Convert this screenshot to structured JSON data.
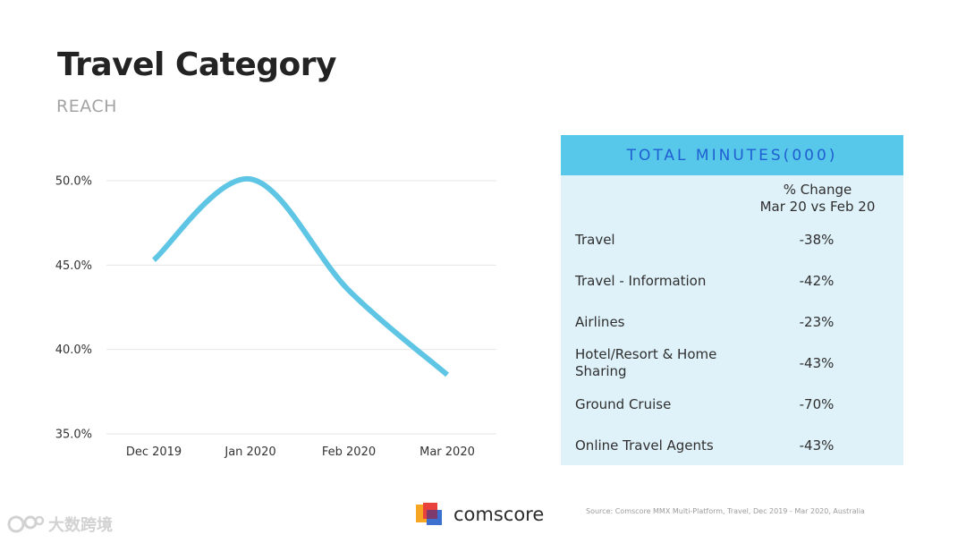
{
  "header": {
    "title": "Travel Category",
    "subtitle": "REACH"
  },
  "chart_data": {
    "type": "line",
    "title": "Travel Category",
    "subtitle": "REACH",
    "xlabel": "",
    "ylabel": "",
    "categories": [
      "Dec 2019",
      "Jan 2020",
      "Feb 2020",
      "Mar 2020"
    ],
    "series": [
      {
        "name": "Reach",
        "values": [
          45.3,
          50.1,
          43.5,
          38.5
        ]
      }
    ],
    "ylim": [
      35,
      50
    ],
    "y_ticks": [
      35,
      40,
      45,
      50
    ],
    "y_tick_labels": [
      "35.0%",
      "40.0%",
      "45.0%",
      "50.0%"
    ],
    "grid": true,
    "smooth": true,
    "line_color": "#5ec5e4"
  },
  "table": {
    "title": "TOTAL MINUTES(000)",
    "column_header_line1": "% Change",
    "column_header_line2": "Mar 20 vs Feb 20",
    "rows": [
      {
        "label": "Travel",
        "value": "-38%"
      },
      {
        "label": "Travel - Information",
        "value": "-42%"
      },
      {
        "label": "Airlines",
        "value": "-23%"
      },
      {
        "label": "Hotel/Resort & Home Sharing",
        "value": "-43%"
      },
      {
        "label": "Ground Cruise",
        "value": "-70%"
      },
      {
        "label": "Online Travel Agents",
        "value": "-43%"
      }
    ],
    "header_color": "#58c8ea",
    "body_color": "#dff1f9",
    "title_color": "#1f5fd1"
  },
  "footer": {
    "logo_text": "comscore",
    "source": "Source: Comscore MMX Multi-Platform, Travel, Dec 2019 - Mar 2020, Australia",
    "watermark": "大数跨境"
  }
}
